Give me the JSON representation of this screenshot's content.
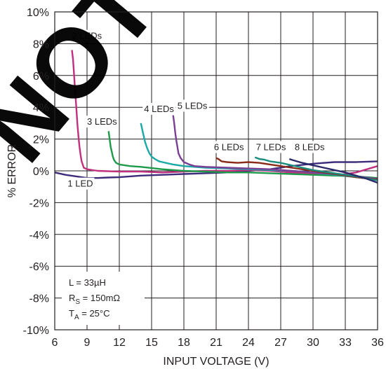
{
  "chart_data": {
    "type": "line",
    "title": "",
    "xlabel": "INPUT VOLTAGE (V)",
    "ylabel": "% ERROR",
    "xlim": [
      6,
      36
    ],
    "ylim": [
      -10,
      10
    ],
    "x_ticks": [
      6,
      9,
      12,
      15,
      18,
      21,
      24,
      27,
      30,
      33,
      36
    ],
    "x_tick_labels": [
      "6",
      "9",
      "12",
      "15",
      "18",
      "21",
      "24",
      "27",
      "30",
      "33",
      "36"
    ],
    "y_ticks": [
      10,
      8,
      6,
      4,
      2,
      0,
      -2,
      -4,
      -6,
      -8,
      -10
    ],
    "y_tick_labels": [
      "10%",
      "8%",
      "6%",
      "4%",
      "2%",
      "0%",
      "-2%",
      "-4%",
      "-6%",
      "-8%",
      "-10%"
    ],
    "grid": true,
    "annotation": {
      "line1": "L = 33µH",
      "line2_main": "R",
      "line2_sub": "S",
      "line2_rest": " = 150mΩ",
      "line3_main": "T",
      "line3_sub": "A",
      "line3_rest": " = 25°C"
    },
    "series": [
      {
        "name": "1 LED",
        "color": "#3d2c7a",
        "label_pos": [
          7.2,
          -1.0
        ],
        "x": [
          6,
          7,
          8,
          9,
          10,
          11,
          12,
          13,
          14,
          16,
          18,
          20,
          22,
          24,
          26,
          28,
          30,
          32,
          34,
          36
        ],
        "y": [
          -0.1,
          -0.25,
          -0.35,
          -0.45,
          -0.45,
          -0.42,
          -0.4,
          -0.35,
          -0.3,
          -0.25,
          -0.2,
          -0.15,
          -0.1,
          0.0,
          0.1,
          0.3,
          0.45,
          0.55,
          0.55,
          0.6
        ]
      },
      {
        "name": "2 LEDs",
        "color": "#c0307f",
        "label_pos": [
          7.6,
          8.3
        ],
        "x": [
          7.6,
          7.7,
          7.8,
          7.9,
          8.0,
          8.1,
          8.2,
          8.3,
          8.4,
          8.5,
          8.7,
          9,
          10,
          12,
          14,
          16,
          18,
          20,
          22,
          24,
          26,
          28,
          30,
          32,
          34,
          36
        ],
        "y": [
          7.6,
          7.0,
          6.0,
          5.0,
          4.0,
          3.0,
          2.2,
          1.5,
          1.0,
          0.6,
          0.2,
          0.1,
          0.0,
          -0.05,
          -0.05,
          -0.1,
          -0.05,
          0.0,
          0.0,
          0.05,
          0.0,
          -0.1,
          -0.2,
          -0.3,
          -0.1,
          0.3
        ]
      },
      {
        "name": "3 LEDs",
        "color": "#1e9a4b",
        "label_pos": [
          9.0,
          2.9
        ],
        "x": [
          11.0,
          11.1,
          11.2,
          11.3,
          11.4,
          11.5,
          11.7,
          12,
          13,
          14,
          16,
          18,
          20,
          22,
          24,
          26,
          28,
          30,
          32,
          34,
          36
        ],
        "y": [
          2.5,
          2.0,
          1.5,
          1.2,
          0.9,
          0.7,
          0.5,
          0.4,
          0.3,
          0.25,
          0.1,
          0.0,
          -0.05,
          -0.1,
          -0.1,
          -0.15,
          -0.2,
          -0.25,
          -0.3,
          -0.35,
          -0.45
        ]
      },
      {
        "name": "4 LEDs",
        "color": "#1aa9a5",
        "label_pos": [
          14.3,
          3.7
        ],
        "x": [
          14.0,
          14.2,
          14.4,
          14.6,
          14.8,
          15.0,
          15.3,
          15.7,
          16,
          17,
          18,
          20,
          22,
          24,
          26,
          28,
          30,
          32,
          34,
          36
        ],
        "y": [
          3.0,
          2.4,
          1.8,
          1.4,
          1.1,
          0.9,
          0.75,
          0.6,
          0.55,
          0.4,
          0.3,
          0.2,
          0.15,
          0.1,
          0.05,
          0.0,
          -0.1,
          -0.25,
          -0.4,
          -0.55
        ]
      },
      {
        "name": "5 LEDs",
        "color": "#7a3f95",
        "label_pos": [
          17.4,
          3.9
        ],
        "x": [
          17.0,
          17.1,
          17.2,
          17.3,
          17.4,
          17.5,
          17.7,
          18.0,
          18.5,
          19,
          20,
          22,
          24,
          26,
          28,
          30,
          32,
          34,
          36
        ],
        "y": [
          3.5,
          3.0,
          2.4,
          1.9,
          1.5,
          1.1,
          0.8,
          0.55,
          0.4,
          0.3,
          0.25,
          0.2,
          0.15,
          0.1,
          0.0,
          -0.1,
          -0.2,
          -0.35,
          -0.5
        ]
      },
      {
        "name": "6 LEDs",
        "color": "#8a2b1a",
        "label_pos": [
          20.8,
          1.3
        ],
        "x": [
          21.0,
          21.2,
          21.5,
          22,
          23,
          24,
          25,
          26,
          27,
          28,
          30,
          32,
          34,
          36
        ],
        "y": [
          0.8,
          0.75,
          0.6,
          0.55,
          0.5,
          0.55,
          0.5,
          0.4,
          0.3,
          0.2,
          0.0,
          -0.2,
          -0.4,
          -0.55
        ]
      },
      {
        "name": "7 LEDs",
        "color": "#1c8c7c",
        "label_pos": [
          24.7,
          1.3
        ],
        "x": [
          24.6,
          24.8,
          25.0,
          25.5,
          26,
          27,
          28,
          29,
          30,
          32,
          34,
          36
        ],
        "y": [
          0.85,
          0.8,
          0.75,
          0.7,
          0.6,
          0.5,
          0.35,
          0.2,
          0.05,
          -0.15,
          -0.35,
          -0.6
        ]
      },
      {
        "name": "8 LEDs",
        "color": "#2a2a6a",
        "label_pos": [
          28.3,
          1.3
        ],
        "x": [
          27.8,
          28.0,
          28.5,
          29,
          30,
          31,
          32,
          33,
          34,
          35,
          36
        ],
        "y": [
          0.75,
          0.7,
          0.6,
          0.5,
          0.35,
          0.2,
          0.05,
          -0.1,
          -0.3,
          -0.5,
          -0.75
        ]
      }
    ]
  }
}
